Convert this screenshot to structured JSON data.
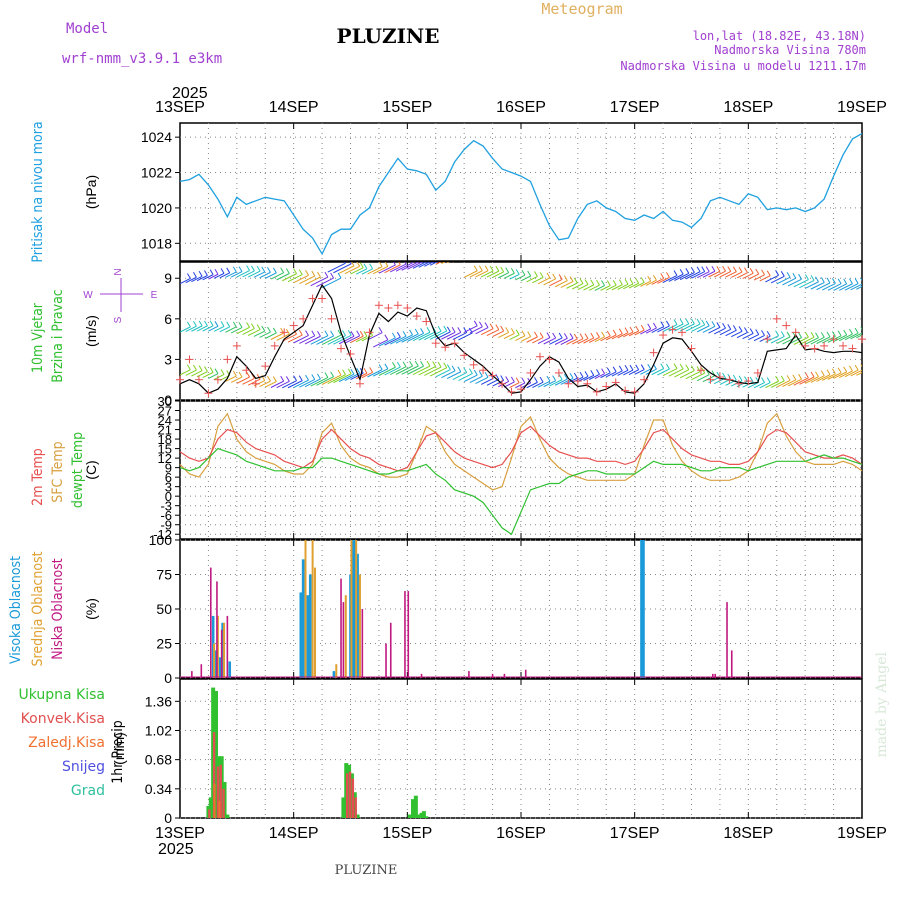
{
  "header": {
    "model_label": "Model",
    "model_name": "wrf-nmm_v3.9.1  e3km",
    "title": "PLUZINE",
    "meteogram": "Meteogram",
    "lonlat": "lon,lat (18.82E, 43.18N)",
    "altitude": "Nadmorska Visina 780m",
    "model_altitude": "Nadmorska Visina u modelu 1211.17m",
    "year": "2025",
    "footer_title": "PLUZINE",
    "credit": "made by Angel"
  },
  "colors": {
    "pressure": "#1fa0e0",
    "temp2m": "#e85050",
    "sfc": "#d8a040",
    "dewpt": "#30c030",
    "black": "#000000",
    "high": "#1a9ad8",
    "mid": "#e0a030",
    "low": "#c01880",
    "precip_total": "#30c030",
    "precip_conv": "#e05050",
    "header_purple": "#a040d0",
    "header_orange": "#e0b060"
  },
  "chart_data": [
    {
      "type": "line",
      "id": "pressure",
      "ylabel_lines": [
        "Pritisak na nivou mora"
      ],
      "unit": "(hPa)",
      "ylim": [
        1017,
        1024.8
      ],
      "yticks": [
        1018,
        1020,
        1022,
        1024
      ],
      "x_categories": [
        "13SEP",
        "14SEP",
        "15SEP",
        "16SEP",
        "17SEP",
        "18SEP",
        "19SEP"
      ],
      "x_hours": [
        0,
        2,
        4,
        6,
        8,
        10,
        12,
        14,
        16,
        18,
        20,
        22,
        24,
        26,
        28,
        30,
        32,
        34,
        36,
        38,
        40,
        42,
        44,
        46,
        48,
        50,
        52,
        54,
        56,
        58,
        60,
        62,
        64,
        66,
        68,
        70,
        72,
        74,
        76,
        78,
        80,
        82,
        84,
        86,
        88,
        90,
        92,
        94,
        96,
        98,
        100,
        102,
        104,
        106,
        108,
        110,
        112,
        114,
        116,
        118,
        120,
        122,
        124,
        126,
        128,
        130,
        132,
        134,
        136,
        138,
        140,
        142,
        144
      ],
      "series": [
        {
          "name": "Pritisak",
          "values": [
            1021.5,
            1021.6,
            1021.9,
            1021.3,
            1020.5,
            1019.5,
            1020.6,
            1020.2,
            1020.4,
            1020.6,
            1020.5,
            1020.4,
            1019.6,
            1018.8,
            1018.3,
            1017.4,
            1018.5,
            1018.8,
            1018.8,
            1019.6,
            1020.0,
            1021.2,
            1022.0,
            1022.8,
            1022.2,
            1022.1,
            1021.9,
            1021.0,
            1021.5,
            1022.6,
            1023.3,
            1023.8,
            1023.5,
            1022.8,
            1022.2,
            1022.0,
            1021.8,
            1021.5,
            1020.2,
            1019.0,
            1018.2,
            1018.3,
            1019.4,
            1020.2,
            1020.4,
            1020.0,
            1019.8,
            1019.4,
            1019.3,
            1019.6,
            1019.4,
            1019.8,
            1019.3,
            1019.2,
            1018.9,
            1019.4,
            1020.4,
            1020.6,
            1020.4,
            1020.2,
            1020.8,
            1020.6,
            1019.9,
            1020.0,
            1019.9,
            1020.0,
            1019.8,
            1020.0,
            1020.5,
            1021.8,
            1023.0,
            1023.9,
            1024.2
          ]
        }
      ]
    },
    {
      "type": "line",
      "id": "wind",
      "ylabel_lines": [
        "10m Vjetar",
        "Brzina i Pravac"
      ],
      "unit": "(m/s)",
      "ylim": [
        0,
        10.2
      ],
      "yticks": [
        0,
        3,
        6,
        9
      ],
      "compass": [
        "N",
        "S",
        "W",
        "E"
      ],
      "x_hours": [
        0,
        2,
        4,
        6,
        8,
        10,
        12,
        14,
        16,
        18,
        20,
        22,
        24,
        26,
        28,
        30,
        32,
        34,
        36,
        38,
        40,
        42,
        44,
        46,
        48,
        50,
        52,
        54,
        56,
        58,
        60,
        62,
        64,
        66,
        68,
        70,
        72,
        74,
        76,
        78,
        80,
        82,
        84,
        86,
        88,
        90,
        92,
        94,
        96,
        98,
        100,
        102,
        104,
        106,
        108,
        110,
        112,
        114,
        116,
        118,
        120,
        122,
        124,
        126,
        128,
        130,
        132,
        134,
        136,
        138,
        140,
        142,
        144
      ],
      "series": [
        {
          "name": "Brzina",
          "values": [
            1.2,
            1.5,
            1.2,
            0.5,
            0.8,
            1.6,
            3.2,
            2.5,
            1.6,
            1.8,
            3.2,
            4.5,
            5.0,
            5.5,
            7.0,
            8.5,
            7.5,
            5.0,
            3.2,
            1.5,
            4.8,
            6.4,
            5.8,
            6.5,
            6.2,
            6.8,
            6.6,
            4.8,
            4.0,
            4.2,
            3.5,
            3.0,
            2.5,
            1.8,
            1.2,
            0.5,
            0.6,
            1.5,
            2.5,
            3.2,
            2.8,
            1.6,
            1.0,
            1.1,
            0.6,
            0.8,
            1.2,
            0.6,
            0.5,
            1.2,
            2.6,
            4.2,
            4.6,
            4.5,
            3.6,
            2.6,
            2.0,
            1.6,
            1.5,
            1.3,
            1.2,
            1.3,
            3.6,
            3.7,
            3.8,
            4.8,
            3.7,
            3.8,
            3.6,
            3.5,
            3.6,
            3.6,
            3.5
          ]
        },
        {
          "name": "Udari",
          "values": [
            1.5,
            3.0,
            1.5,
            0.5,
            1.5,
            3.0,
            4.0,
            2.2,
            1.2,
            2.5,
            4.0,
            5.0,
            5.5,
            6.0,
            7.5,
            7.5,
            6.0,
            3.8,
            3.4,
            1.2,
            5.0,
            7.0,
            6.8,
            7.0,
            6.8,
            6.2,
            5.8,
            4.2,
            3.9,
            4.2,
            3.3,
            2.6,
            2.2,
            1.8,
            1.2,
            0.6,
            0.8,
            2.0,
            3.2,
            3.0,
            2.0,
            1.2,
            1.4,
            1.2,
            0.6,
            1.0,
            1.3,
            0.7,
            0.6,
            1.5,
            3.5,
            4.8,
            5.2,
            5.0,
            3.8,
            2.2,
            1.5,
            1.7,
            1.5,
            1.2,
            1.4,
            2.0,
            4.5,
            6.0,
            5.5,
            5.0,
            4.0,
            3.8,
            4.0,
            4.5,
            4.0,
            3.8,
            4.5
          ]
        }
      ]
    },
    {
      "type": "line",
      "id": "temperature",
      "ylabel_lines": [
        "2m Temp",
        "SFC Temp",
        "dewpt Temp"
      ],
      "unit": "(C)",
      "ylim": [
        -13.5,
        30
      ],
      "yticks": [
        -12,
        -9,
        -6,
        -3,
        0,
        3,
        6,
        9,
        12,
        15,
        18,
        21,
        24,
        27,
        30
      ],
      "x_hours": [
        0,
        2,
        4,
        6,
        8,
        10,
        12,
        14,
        16,
        18,
        20,
        22,
        24,
        26,
        28,
        30,
        32,
        34,
        36,
        38,
        40,
        42,
        44,
        46,
        48,
        50,
        52,
        54,
        56,
        58,
        60,
        62,
        64,
        66,
        68,
        70,
        72,
        74,
        76,
        78,
        80,
        82,
        84,
        86,
        88,
        90,
        92,
        94,
        96,
        98,
        100,
        102,
        104,
        106,
        108,
        110,
        112,
        114,
        116,
        118,
        120,
        122,
        124,
        126,
        128,
        130,
        132,
        134,
        136,
        138,
        140,
        142,
        144
      ],
      "series": [
        {
          "name": "2m Temp",
          "values": [
            14,
            12,
            11,
            12,
            18,
            21,
            20,
            17,
            15,
            14,
            13,
            11,
            10,
            9,
            11,
            18,
            21,
            18,
            15,
            13,
            12,
            10,
            9,
            8,
            9,
            14,
            19,
            20,
            17,
            14,
            12,
            11,
            10,
            9,
            10,
            14,
            20,
            22,
            19,
            16,
            14,
            13,
            12,
            12,
            11,
            11,
            11,
            10,
            11,
            15,
            20,
            21,
            18,
            15,
            13,
            12,
            11,
            11,
            10,
            10,
            11,
            14,
            19,
            21,
            20,
            17,
            14,
            13,
            12,
            12,
            13,
            12,
            10
          ]
        },
        {
          "name": "SFC Temp",
          "values": [
            10,
            7,
            6,
            10,
            22,
            26,
            18,
            14,
            12,
            11,
            10,
            8,
            7,
            7,
            10,
            20,
            23,
            16,
            12,
            10,
            9,
            7,
            6,
            6,
            7,
            14,
            22,
            20,
            14,
            10,
            8,
            6,
            4,
            2,
            3,
            12,
            22,
            25,
            18,
            12,
            9,
            7,
            6,
            5,
            5,
            5,
            5,
            5,
            7,
            16,
            24,
            24,
            16,
            11,
            8,
            6,
            5,
            5,
            5,
            6,
            8,
            14,
            23,
            26,
            19,
            14,
            11,
            10,
            10,
            10,
            11,
            10,
            8
          ]
        },
        {
          "name": "dewpt Temp",
          "values": [
            9,
            8,
            9,
            12,
            15,
            14,
            13,
            11,
            10,
            9,
            8,
            8,
            8,
            9,
            9,
            12,
            12,
            11,
            10,
            9,
            8,
            7,
            7,
            8,
            8,
            9,
            10,
            7,
            5,
            2,
            1,
            0,
            -2,
            -6,
            -10,
            -12,
            -5,
            2,
            3,
            4,
            4,
            6,
            7,
            8,
            8,
            7,
            7,
            7,
            7,
            9,
            11,
            10,
            10,
            10,
            9,
            8,
            8,
            9,
            9,
            9,
            8,
            9,
            10,
            11,
            11,
            11,
            11,
            12,
            13,
            12,
            12,
            11,
            10
          ]
        }
      ]
    },
    {
      "type": "bar",
      "id": "cloud",
      "ylabel_lines": [
        "Visoka Oblacnost",
        "Srednja Oblacnost",
        "Niska Oblacnost"
      ],
      "unit": "(%)",
      "ylim": [
        0,
        100
      ],
      "yticks": [
        0,
        25,
        50,
        75,
        100
      ],
      "series": [
        {
          "name": "Visoka Oblacnost",
          "points": [
            [
              7,
              45
            ],
            [
              7.5,
              20
            ],
            [
              8.5,
              15
            ],
            [
              9,
              40
            ],
            [
              10.5,
              12
            ],
            [
              25.5,
              62
            ],
            [
              26,
              86
            ],
            [
              27,
              60
            ],
            [
              27.5,
              75
            ],
            [
              32.5,
              5
            ],
            [
              36,
              75
            ],
            [
              36.5,
              100
            ],
            [
              37,
              100
            ],
            [
              37.5,
              90
            ],
            [
              97.5,
              100
            ],
            [
              97.8,
              100
            ]
          ]
        },
        {
          "name": "Srednja Oblacnost",
          "points": [
            [
              7.2,
              25
            ],
            [
              8,
              45
            ],
            [
              9.3,
              40
            ],
            [
              26.5,
              100
            ],
            [
              28,
              100
            ],
            [
              28.5,
              80
            ],
            [
              33,
              10
            ],
            [
              35,
              60
            ],
            [
              36.2,
              100
            ],
            [
              37.2,
              100
            ],
            [
              38,
              75
            ]
          ]
        },
        {
          "name": "Niska Oblacnost",
          "points": [
            [
              2.5,
              5
            ],
            [
              4.5,
              10
            ],
            [
              6.5,
              80
            ],
            [
              7.8,
              70
            ],
            [
              8.8,
              35
            ],
            [
              10,
              45
            ],
            [
              34,
              72
            ],
            [
              34.5,
              55
            ],
            [
              38.5,
              50
            ],
            [
              43.5,
              25
            ],
            [
              44.5,
              40
            ],
            [
              47.5,
              63
            ],
            [
              48.2,
              63
            ],
            [
              51,
              3
            ],
            [
              61,
              5
            ],
            [
              66,
              3
            ],
            [
              68.5,
              3
            ],
            [
              73,
              6
            ],
            [
              112.5,
              3
            ],
            [
              113,
              3
            ],
            [
              115.5,
              55
            ],
            [
              116.5,
              20
            ]
          ]
        }
      ]
    },
    {
      "type": "bar",
      "id": "precip",
      "ylabel_lines": [
        "1hr Precip"
      ],
      "unit": "(mm)",
      "ylim": [
        0,
        1.62
      ],
      "yticks": [
        0,
        0.34,
        0.68,
        1.02,
        1.36
      ],
      "legend": [
        "Ukupna Kisa",
        "Konvek.Kisa",
        "Zaledj.Kisa",
        "Snijeg",
        "Grad"
      ],
      "series": [
        {
          "name": "Ukupna Kisa",
          "points": [
            [
              6,
              0.14
            ],
            [
              6.5,
              0.24
            ],
            [
              7,
              1.52
            ],
            [
              7.6,
              1.48
            ],
            [
              8.2,
              0.72
            ],
            [
              8.8,
              0.72
            ],
            [
              9.4,
              0.42
            ],
            [
              10,
              0.04
            ],
            [
              34.5,
              0.24
            ],
            [
              35.1,
              0.64
            ],
            [
              35.7,
              0.62
            ],
            [
              36.3,
              0.52
            ],
            [
              36.9,
              0.3
            ],
            [
              37.5,
              0.04
            ],
            [
              48.5,
              0.04
            ],
            [
              49.2,
              0.22
            ],
            [
              49.8,
              0.26
            ],
            [
              50.4,
              0.04
            ],
            [
              51,
              0.06
            ],
            [
              51.5,
              0.08
            ],
            [
              52,
              0.02
            ]
          ]
        },
        {
          "name": "Konvek.Kisa",
          "points": [
            [
              6.2,
              0.1
            ],
            [
              7.2,
              1.0
            ],
            [
              8.0,
              0.6
            ],
            [
              8.6,
              0.62
            ],
            [
              9.2,
              0.34
            ],
            [
              35.3,
              0.52
            ],
            [
              35.9,
              0.54
            ],
            [
              36.5,
              0.46
            ],
            [
              37.1,
              0.24
            ]
          ]
        },
        {
          "name": "Zaledj.Kisa",
          "points": [
            [
              7.3,
              0.4
            ],
            [
              8.3,
              0.2
            ]
          ]
        }
      ]
    }
  ]
}
